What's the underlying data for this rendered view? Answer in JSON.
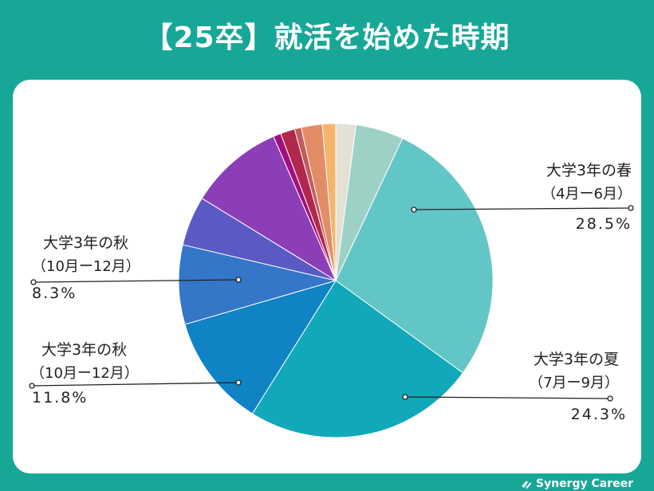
{
  "title": "【25卒】就活を始めた時期",
  "brand": "Synergy Career",
  "chart_data": {
    "type": "pie",
    "slices": [
      {
        "label": "",
        "value": 2.1,
        "color": "#e3e0d4"
      },
      {
        "label": "",
        "value": 5.0,
        "color": "#9dd1c6"
      },
      {
        "label": "大学3年の春（4月ー6月）",
        "value": 28.5,
        "color": "#63c6c6"
      },
      {
        "label": "大学3年の夏（7月ー9月）",
        "value": 24.3,
        "color": "#10a8ba"
      },
      {
        "label": "大学3年の秋（10月ー12月）",
        "value": 11.8,
        "color": "#0f83c4"
      },
      {
        "label": "大学3年の秋（10月ー12月）",
        "value": 8.3,
        "color": "#3476c8"
      },
      {
        "label": "",
        "value": 5.2,
        "color": "#5b5ac4"
      },
      {
        "label": "",
        "value": 9.9,
        "color": "#8c3eb7"
      },
      {
        "label": "",
        "value": 0.8,
        "color": "#a1107e"
      },
      {
        "label": "",
        "value": 1.5,
        "color": "#b2284c"
      },
      {
        "label": "",
        "value": 0.7,
        "color": "#c65a5c"
      },
      {
        "label": "",
        "value": 2.2,
        "color": "#e28d66"
      },
      {
        "label": "",
        "value": 1.4,
        "color": "#f6b56c"
      }
    ],
    "callouts": [
      {
        "line1": "大学3年の春",
        "line2": "（4月ー6月）",
        "pct": "28.5%"
      },
      {
        "line1": "大学3年の夏",
        "line2": "（7月ー9月）",
        "pct": "24.3%"
      },
      {
        "line1": "大学3年の秋",
        "line2": "（10月ー12月）",
        "pct": "11.8%"
      },
      {
        "line1": "大学3年の秋",
        "line2": "（10月ー12月）",
        "pct": "8.3%"
      }
    ]
  }
}
